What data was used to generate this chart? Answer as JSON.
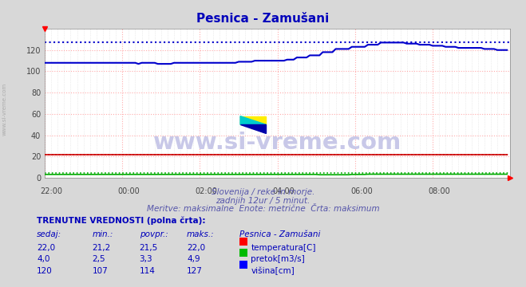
{
  "title": "Pesnica - Zamušani",
  "bg_color": "#d8d8d8",
  "plot_bg_color": "#ffffff",
  "grid_color_major": "#ffaaaa",
  "grid_color_minor": "#dddddd",
  "xlabel_times": [
    "22:00",
    "00:00",
    "02:00",
    "04:00",
    "06:00",
    "08:00"
  ],
  "ylabel_values": [
    0,
    20,
    40,
    60,
    80,
    100,
    120
  ],
  "ylim": [
    0,
    140
  ],
  "xlim": [
    0,
    144
  ],
  "subtitle1": "Slovenija / reke in morje.",
  "subtitle2": "zadnjih 12ur / 5 minut.",
  "subtitle3": "Meritve: maksimalne  Enote: metrične  Črta: maksimum",
  "table_header": "TRENUTNE VREDNOSTI (polna črta):",
  "col_headers": [
    "sedaj:",
    "min.:",
    "povpr.:",
    "maks.:",
    "Pesnica - Zamušani"
  ],
  "row1": [
    "22,0",
    "21,2",
    "21,5",
    "22,0"
  ],
  "row2": [
    "4,0",
    "2,5",
    "3,3",
    "4,9"
  ],
  "row3": [
    "120",
    "107",
    "114",
    "127"
  ],
  "legend_labels": [
    "temperatura[C]",
    "pretok[m3/s]",
    "višina[cm]"
  ],
  "legend_colors": [
    "#ff0000",
    "#00bb00",
    "#0000ff"
  ],
  "watermark": "www.si-vreme.com",
  "temp_max": 22.0,
  "flow_max": 4.9,
  "height_max": 127
}
